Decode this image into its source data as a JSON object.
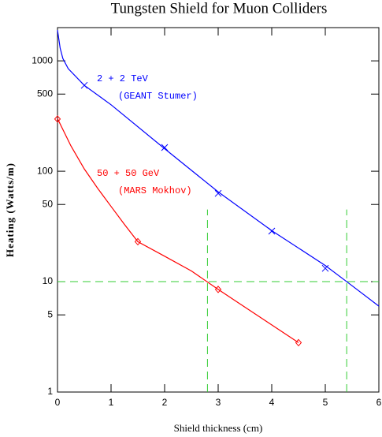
{
  "chart_data": {
    "type": "line",
    "title": "Tungsten Shield for Muon Colliders",
    "x_label": "Shield thickness (cm)",
    "y_label": "Heating  (Watts/m)",
    "xlim": [
      0,
      6
    ],
    "xticks": [
      0,
      1,
      2,
      3,
      4,
      5,
      6
    ],
    "ylim": [
      1,
      2000
    ],
    "yticks": [
      1,
      5,
      10,
      50,
      100,
      500,
      1000
    ],
    "y_scale": "log",
    "series": [
      {
        "color": "#0000ff",
        "style": "line",
        "x": [
          0,
          0.05,
          0.1,
          0.2,
          0.5,
          1,
          2,
          3,
          4,
          5,
          5.4,
          6
        ],
        "values": [
          1900,
          1300,
          1050,
          850,
          600,
          400,
          160,
          65,
          29,
          14,
          10,
          6
        ]
      },
      {
        "color": "#0000ff",
        "style": "markers",
        "marker": "x",
        "x": [
          0.5,
          2,
          3,
          4,
          5
        ],
        "values": [
          600,
          164,
          63,
          28.7,
          13.2
        ]
      },
      {
        "color": "#ff0000",
        "style": "line",
        "x": [
          0,
          0.25,
          0.5,
          0.75,
          1,
          1.25,
          1.5,
          2,
          2.5,
          3,
          4.5
        ],
        "values": [
          300,
          170,
          105,
          70,
          48,
          33,
          23,
          17,
          12.5,
          8.5,
          2.8
        ]
      },
      {
        "color": "#ff0000",
        "style": "markers",
        "marker": "diamond",
        "x": [
          0,
          1.5,
          3,
          4.5
        ],
        "values": [
          297,
          23,
          8.5,
          2.8
        ]
      }
    ],
    "reference_lines": [
      {
        "color": "#33cc33",
        "y": 10
      },
      {
        "color": "#33cc33",
        "x": 2.8,
        "ymax": 45
      },
      {
        "color": "#33cc33",
        "x": 5.4,
        "ymax": 45
      }
    ],
    "annotations": [
      {
        "text": "2 + 2 TeV",
        "color": "#0000ff"
      },
      {
        "text": "(GEANT Stumer)",
        "color": "#0000ff"
      },
      {
        "text": "50 + 50 GeV",
        "color": "#ff0000"
      },
      {
        "text": "(MARS Mokhov)",
        "color": "#ff0000"
      }
    ]
  }
}
